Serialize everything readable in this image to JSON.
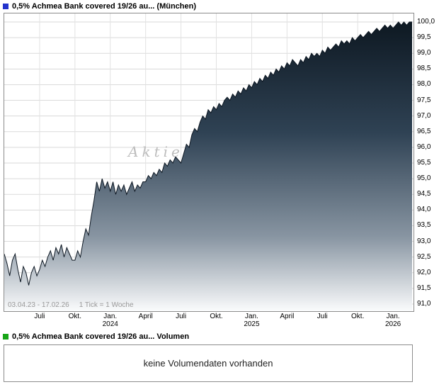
{
  "header": {
    "title": "0,5% Achmea Bank covered 19/26 au... (München)",
    "marker_color": "#2333cc"
  },
  "volume": {
    "title": "0,5% Achmea Bank covered 19/26 au... Volumen",
    "marker_color": "#17a517",
    "message": "keine Volumendaten vorhanden"
  },
  "colors": {
    "grid": "#dadada",
    "grid_vertical": "#e2e2e2",
    "border": "#8c8c8c",
    "line": "#0d1722",
    "watermark": "#bdbdbd",
    "muted": "#999999",
    "tick": "#808080"
  },
  "chart_data": {
    "type": "area",
    "title": "0,5% Achmea Bank covered 19/26 au... (München)",
    "x_range_label": "03.04.23 - 17.02.26",
    "tick_note": "1 Tick = 1 Woche",
    "watermark": "Aktie",
    "xlabel": "",
    "ylabel": "",
    "ylim": [
      91.0,
      100.0
    ],
    "y_step": 0.5,
    "grid": true,
    "legend_position": "top-left",
    "y_ticks": [
      "100,0",
      "99,5",
      "99,0",
      "98,5",
      "98,0",
      "97,5",
      "97,0",
      "96,5",
      "96,0",
      "95,5",
      "95,0",
      "94,5",
      "94,0",
      "93,5",
      "93,0",
      "92,5",
      "92,0",
      "91,5",
      "91,0"
    ],
    "x_ticks": [
      {
        "label": "Juli",
        "week": 13
      },
      {
        "label": "Okt.",
        "week": 26
      },
      {
        "label": "Jan.",
        "year": "2024",
        "week": 39
      },
      {
        "label": "April",
        "week": 52
      },
      {
        "label": "Juli",
        "week": 65
      },
      {
        "label": "Okt.",
        "week": 78
      },
      {
        "label": "Jan.",
        "year": "2025",
        "week": 91
      },
      {
        "label": "April",
        "week": 104
      },
      {
        "label": "Juli",
        "week": 117
      },
      {
        "label": "Okt.",
        "week": 130
      },
      {
        "label": "Jan.",
        "year": "2026",
        "week": 143
      }
    ],
    "x_unit": "week",
    "weeks_total": 150,
    "area_gradient": [
      {
        "offset": 0,
        "color": "#0b151e"
      },
      {
        "offset": 0.4,
        "color": "#2f4254"
      },
      {
        "offset": 0.75,
        "color": "#8895a2"
      },
      {
        "offset": 1,
        "color": "#fafbfc"
      }
    ],
    "values": [
      92.6,
      92.3,
      91.9,
      92.4,
      92.6,
      92.1,
      91.7,
      92.2,
      92.0,
      91.6,
      92.0,
      92.2,
      91.9,
      92.1,
      92.4,
      92.2,
      92.5,
      92.7,
      92.4,
      92.8,
      92.6,
      92.9,
      92.5,
      92.8,
      92.6,
      92.4,
      92.4,
      92.7,
      92.5,
      93.0,
      93.4,
      93.2,
      93.8,
      94.3,
      94.9,
      94.6,
      95.0,
      94.7,
      94.9,
      94.6,
      94.9,
      94.5,
      94.8,
      94.6,
      94.8,
      94.5,
      94.7,
      94.9,
      94.6,
      94.8,
      94.7,
      94.9,
      94.9,
      95.1,
      95.0,
      95.2,
      95.1,
      95.3,
      95.2,
      95.5,
      95.4,
      95.6,
      95.5,
      95.7,
      95.6,
      95.5,
      95.8,
      96.1,
      96.0,
      96.4,
      96.6,
      96.5,
      96.8,
      97.0,
      96.9,
      97.2,
      97.1,
      97.3,
      97.2,
      97.4,
      97.3,
      97.5,
      97.6,
      97.5,
      97.7,
      97.6,
      97.8,
      97.7,
      97.9,
      97.8,
      98.0,
      97.9,
      98.1,
      98.0,
      98.2,
      98.1,
      98.3,
      98.2,
      98.4,
      98.3,
      98.5,
      98.4,
      98.6,
      98.5,
      98.7,
      98.6,
      98.8,
      98.7,
      98.6,
      98.8,
      98.7,
      98.9,
      98.8,
      99.0,
      98.9,
      99.0,
      98.9,
      99.1,
      99.0,
      99.2,
      99.1,
      99.2,
      99.3,
      99.2,
      99.4,
      99.3,
      99.4,
      99.3,
      99.5,
      99.4,
      99.5,
      99.6,
      99.5,
      99.6,
      99.7,
      99.6,
      99.7,
      99.8,
      99.7,
      99.8,
      99.9,
      99.8,
      99.9,
      99.8,
      99.9,
      100.0,
      99.9,
      100.0,
      99.9,
      100.0,
      100.0
    ]
  }
}
